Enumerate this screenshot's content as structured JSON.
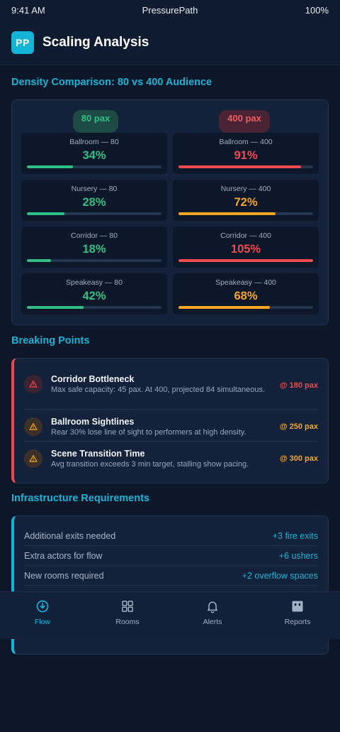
{
  "status": {
    "time": "9:41 AM",
    "carrier": "PressurePath",
    "battery": "100%"
  },
  "header": {
    "logo": "PP",
    "title": "Scaling Analysis"
  },
  "density": {
    "title": "Density Comparison: 80 vs 400 Audience",
    "left_pill": "80 pax",
    "right_pill": "400 pax",
    "rows": [
      {
        "left": {
          "label": "Ballroom — 80",
          "value": "34%",
          "fill": 0.34,
          "tone": "green"
        },
        "right": {
          "label": "Ballroom — 400",
          "value": "91%",
          "fill": 0.91,
          "tone": "red"
        }
      },
      {
        "left": {
          "label": "Nursery — 80",
          "value": "28%",
          "fill": 0.28,
          "tone": "green"
        },
        "right": {
          "label": "Nursery — 400",
          "value": "72%",
          "fill": 0.72,
          "tone": "orange"
        }
      },
      {
        "left": {
          "label": "Corridor — 80",
          "value": "18%",
          "fill": 0.18,
          "tone": "green"
        },
        "right": {
          "label": "Corridor — 400",
          "value": "105%",
          "fill": 1.0,
          "tone": "red"
        }
      },
      {
        "left": {
          "label": "Speakeasy — 80",
          "value": "42%",
          "fill": 0.42,
          "tone": "green"
        },
        "right": {
          "label": "Speakeasy — 400",
          "value": "68%",
          "fill": 0.68,
          "tone": "orange"
        }
      }
    ]
  },
  "breaking": {
    "title": "Breaking Points",
    "items": [
      {
        "title": "Corridor Bottleneck",
        "desc": "Max safe capacity: 45 pax. At 400, projected 84 simultaneous.",
        "at": "@ 180 pax",
        "tone": "red",
        "icon": "warning-icon"
      },
      {
        "title": "Ballroom Sightlines",
        "desc": "Rear 30% lose line of sight to performers at high density.",
        "at": "@ 250 pax",
        "tone": "orange",
        "icon": "warning-icon"
      },
      {
        "title": "Scene Transition Time",
        "desc": "Avg transition exceeds 3 min target, stalling show pacing.",
        "at": "@ 300 pax",
        "tone": "orange",
        "icon": "warning-icon"
      }
    ]
  },
  "infra": {
    "title": "Infrastructure Requirements",
    "rows": [
      {
        "key": "Additional exits needed",
        "value": "+3 fire exits"
      },
      {
        "key": "Extra actors for flow",
        "value": "+6 ushers"
      },
      {
        "key": "New rooms required",
        "value": "+2 overflow spaces"
      }
    ]
  },
  "tabs": [
    {
      "label": "Flow",
      "icon": "flow-icon",
      "active": true
    },
    {
      "label": "Rooms",
      "icon": "grid-icon",
      "active": false
    },
    {
      "label": "Alerts",
      "icon": "bell-icon",
      "active": false
    },
    {
      "label": "Reports",
      "icon": "report-icon",
      "active": false
    }
  ],
  "colors": {
    "accent": "#14b4d6",
    "green": "#2fbf86",
    "red": "#ee4a4f",
    "orange": "#f5a623",
    "bg": "#0c172a"
  }
}
